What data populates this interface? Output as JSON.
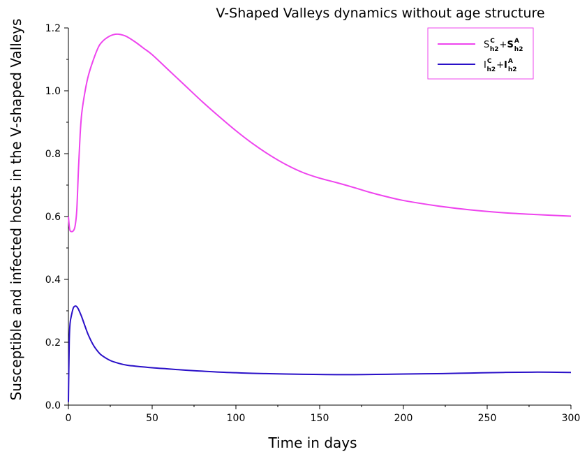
{
  "chart_data": {
    "type": "line",
    "title": "V-Shaped Valleys dynamics without age structure",
    "xlabel": "Time in days",
    "ylabel": "Susceptible and infected hosts in the V-shaped Valleys",
    "xlim": [
      0,
      300
    ],
    "ylim": [
      0,
      1.2
    ],
    "x_ticks": [
      "0",
      "50",
      "100",
      "150",
      "200",
      "250",
      "300"
    ],
    "y_ticks": [
      "0.0",
      "0.2",
      "0.4",
      "0.6",
      "0.8",
      "1.0",
      "1.2"
    ],
    "grid": false,
    "legend_position": "top-right",
    "series": [
      {
        "legend": {
          "base1": "S",
          "sup1": "C",
          "sub1": "h2",
          "plus": "+",
          "base2": "S",
          "sup2": "A",
          "sub2": "h2"
        },
        "color": "#ee44ee",
        "x": [
          0,
          0.5,
          1,
          2,
          3,
          4,
          5,
          6,
          7,
          8,
          10,
          12,
          15,
          18,
          20,
          22,
          25,
          28,
          30,
          32,
          35,
          40,
          45,
          50,
          60,
          70,
          80,
          90,
          100,
          110,
          120,
          130,
          140,
          150,
          160,
          170,
          180,
          190,
          200,
          220,
          240,
          260,
          280,
          300
        ],
        "y": [
          0.6,
          0.57,
          0.555,
          0.552,
          0.555,
          0.57,
          0.62,
          0.75,
          0.86,
          0.93,
          1.0,
          1.05,
          1.1,
          1.14,
          1.155,
          1.165,
          1.175,
          1.18,
          1.18,
          1.178,
          1.172,
          1.155,
          1.135,
          1.115,
          1.065,
          1.015,
          0.965,
          0.918,
          0.873,
          0.832,
          0.796,
          0.765,
          0.74,
          0.722,
          0.708,
          0.693,
          0.677,
          0.663,
          0.651,
          0.634,
          0.621,
          0.612,
          0.606,
          0.601
        ]
      },
      {
        "legend": {
          "base1": "I",
          "sup1": "C",
          "sub1": "h2",
          "plus": "+",
          "base2": "I",
          "sup2": "A",
          "sub2": "h2"
        },
        "color": "#2a10c8",
        "x": [
          0,
          0.5,
          1,
          2,
          3,
          4,
          5,
          6,
          7,
          8,
          10,
          12,
          15,
          18,
          20,
          25,
          30,
          35,
          40,
          50,
          60,
          70,
          80,
          90,
          100,
          110,
          120,
          130,
          140,
          150,
          160,
          170,
          180,
          190,
          200,
          220,
          240,
          260,
          280,
          300
        ],
        "y": [
          0.01,
          0.2,
          0.26,
          0.29,
          0.31,
          0.315,
          0.313,
          0.305,
          0.293,
          0.28,
          0.25,
          0.222,
          0.19,
          0.168,
          0.158,
          0.142,
          0.133,
          0.127,
          0.124,
          0.119,
          0.115,
          0.111,
          0.108,
          0.105,
          0.103,
          0.101,
          0.1,
          0.099,
          0.098,
          0.0975,
          0.097,
          0.097,
          0.0975,
          0.098,
          0.099,
          0.1,
          0.102,
          0.104,
          0.105,
          0.104
        ]
      }
    ]
  }
}
